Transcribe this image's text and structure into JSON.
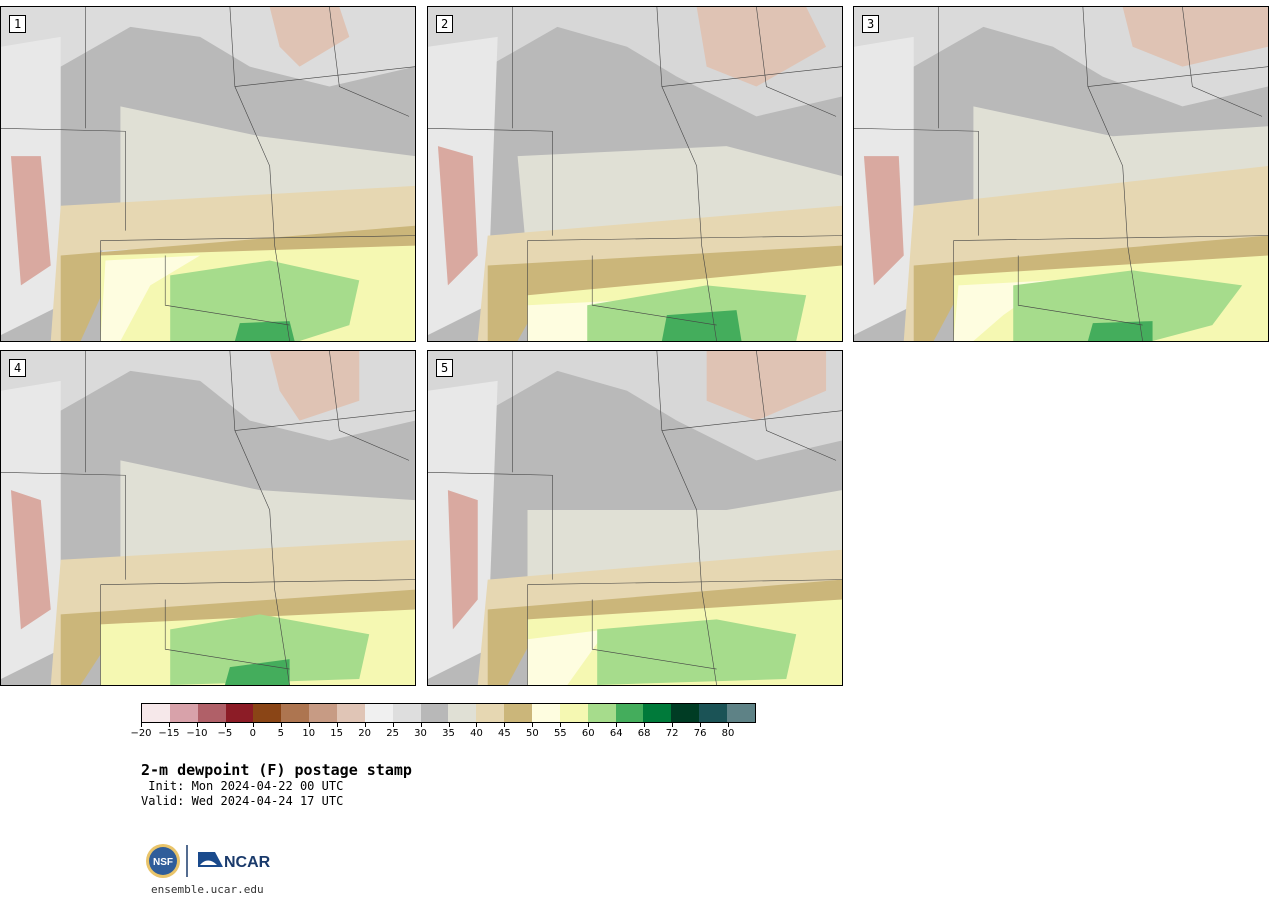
{
  "panels": [
    {
      "label": "1"
    },
    {
      "label": "2"
    },
    {
      "label": "3"
    },
    {
      "label": "4"
    },
    {
      "label": "5"
    }
  ],
  "colorbar": {
    "colors": [
      "#f6e8ea",
      "#d8a2aa",
      "#b06068",
      "#8c1c26",
      "#8a4516",
      "#ad7550",
      "#c79b84",
      "#e0c5b6",
      "#f0f0f0",
      "#dedede",
      "#b8b8b8",
      "#e0e0d5",
      "#e6d7b2",
      "#cbb67a",
      "#fefde0",
      "#f5f8b2",
      "#a6dc8c",
      "#44ad5c",
      "#007a3a",
      "#003c24",
      "#1b5356",
      "#5e8286"
    ],
    "tick_labels": [
      "−20",
      "−15",
      "−10",
      "−5",
      "0",
      "5",
      "10",
      "15",
      "20",
      "25",
      "30",
      "35",
      "40",
      "45",
      "50",
      "55",
      "60",
      "64",
      "68",
      "72",
      "76",
      "80"
    ]
  },
  "title": "2-m dewpoint (F) postage stamp",
  "init_text": " Init: Mon 2024-04-22 00 UTC",
  "valid_text": "Valid: Wed 2024-04-24 17 UTC",
  "logos": {
    "nsf": "NSF",
    "ncar": "NCAR"
  },
  "website": "ensemble.ucar.edu"
}
